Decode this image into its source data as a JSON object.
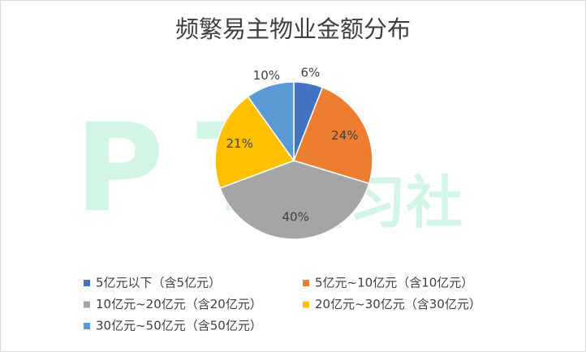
{
  "chart_data": {
    "type": "pie",
    "title": "频繁易主物业金额分布",
    "categories": [
      "5亿元以下（含5亿元）",
      "5亿元~10亿元（含10亿元）",
      "10亿元~20亿元（含20亿元）",
      "20亿元~30亿元（含30亿元）",
      "30亿元~50亿元（含50亿元）"
    ],
    "values": [
      6,
      24,
      40,
      21,
      10
    ],
    "value_labels": [
      "6%",
      "24%",
      "40%",
      "21%",
      "10%"
    ],
    "colors": [
      "#4472c4",
      "#ed7d31",
      "#a5a5a5",
      "#ffc000",
      "#5b9bd5"
    ],
    "legend": "bottom",
    "watermark": [
      "PT",
      "研习社"
    ]
  }
}
